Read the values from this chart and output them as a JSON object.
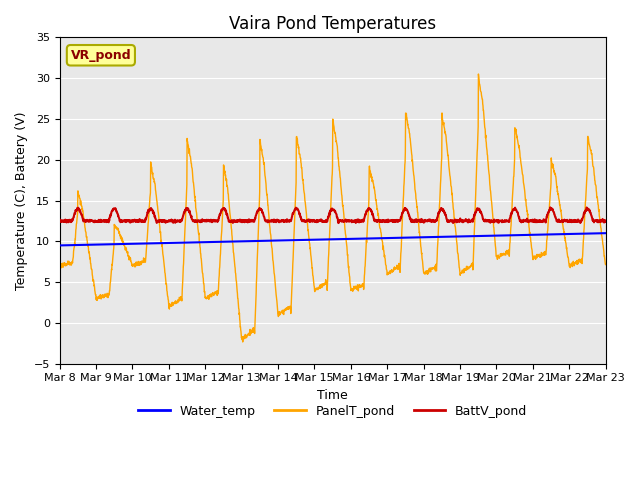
{
  "title": "Vaira Pond Temperatures",
  "xlabel": "Time",
  "ylabel": "Temperature (C), Battery (V)",
  "ylim": [
    -5,
    35
  ],
  "yticks": [
    -5,
    0,
    5,
    10,
    15,
    20,
    25,
    30,
    35
  ],
  "x_tick_labels": [
    "Mar 8",
    "Mar 9",
    "Mar 10",
    "Mar 11",
    "Mar 12",
    "Mar 13",
    "Mar 14",
    "Mar 15",
    "Mar 16",
    "Mar 17",
    "Mar 18",
    "Mar 19",
    "Mar 20",
    "Mar 21",
    "Mar 22",
    "Mar 23"
  ],
  "station_label": "VR_pond",
  "station_label_color": "#8B0000",
  "station_box_bg": "#FFFF99",
  "station_box_edge": "#AAAA00",
  "bg_color": "#E8E8E8",
  "water_color": "#0000FF",
  "panel_color": "#FFA500",
  "batt_color": "#CC0000",
  "legend_entries": [
    "Water_temp",
    "PanelT_pond",
    "BattV_pond"
  ]
}
